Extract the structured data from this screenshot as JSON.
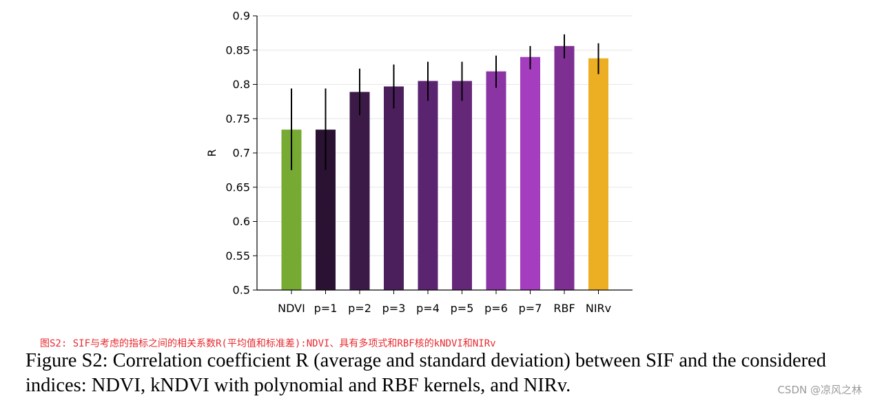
{
  "chart_data": {
    "type": "bar",
    "title": "",
    "xlabel": "",
    "ylabel": "R",
    "ylim": [
      0.5,
      0.9
    ],
    "yticks": [
      0.5,
      0.55,
      0.6,
      0.65,
      0.7,
      0.75,
      0.8,
      0.85,
      0.9
    ],
    "ytick_labels": [
      "0.5",
      "0.55",
      "0.6",
      "0.65",
      "0.7",
      "0.75",
      "0.8",
      "0.85",
      "0.9"
    ],
    "grid": true,
    "categories": [
      "NDVI",
      "p=1",
      "p=2",
      "p=3",
      "p=4",
      "p=5",
      "p=6",
      "p=7",
      "RBF",
      "NIRv"
    ],
    "values": [
      0.734,
      0.734,
      0.789,
      0.797,
      0.805,
      0.805,
      0.819,
      0.84,
      0.856,
      0.838
    ],
    "error_low": [
      0.675,
      0.675,
      0.755,
      0.765,
      0.776,
      0.776,
      0.795,
      0.822,
      0.838,
      0.815
    ],
    "error_high": [
      0.794,
      0.794,
      0.823,
      0.829,
      0.833,
      0.833,
      0.842,
      0.856,
      0.873,
      0.86
    ],
    "colors": [
      "#76aa32",
      "#2a1232",
      "#3c1a48",
      "#4b1f5c",
      "#5a2470",
      "#652879",
      "#8b35a4",
      "#a43ebf",
      "#7d2f92",
      "#ecaf24"
    ]
  },
  "captions": {
    "chinese": "图S2: SIF与考虑的指标之间的相关系数R(平均值和标准差):NDVI、具有多项式和RBF核的kNDVI和NIRv",
    "english": "Figure S2: Correlation coefficient R (average and standard deviation) between SIF and the considered indices: NDVI, kNDVI with polynomial and RBF kernels, and NIRv."
  },
  "watermark": "CSDN @凉风之林"
}
